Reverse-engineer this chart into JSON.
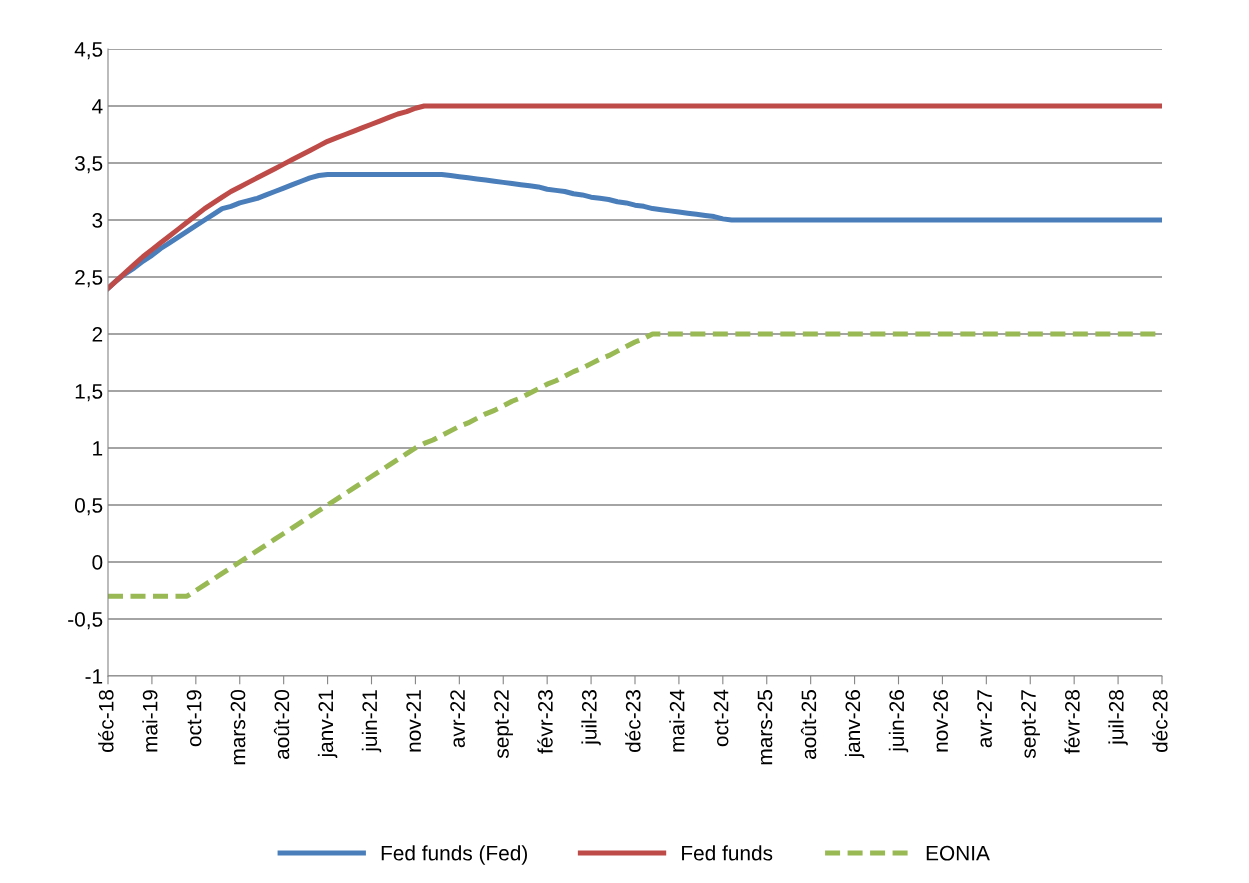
{
  "chart_data": {
    "type": "line",
    "categories": [
      "déc-18",
      null,
      null,
      null,
      null,
      "mai-19",
      null,
      null,
      null,
      null,
      "oct-19",
      null,
      null,
      null,
      null,
      "mars-20",
      null,
      null,
      null,
      null,
      "août-20",
      null,
      null,
      null,
      null,
      "janv-21",
      null,
      null,
      null,
      null,
      "juin-21",
      null,
      null,
      null,
      null,
      "nov-21",
      null,
      null,
      null,
      null,
      "avr-22",
      null,
      null,
      null,
      null,
      "sept-22",
      null,
      null,
      null,
      null,
      "févr-23",
      null,
      null,
      null,
      null,
      "juil-23",
      null,
      null,
      null,
      null,
      "déc-23",
      null,
      null,
      null,
      null,
      "mai-24",
      null,
      null,
      null,
      null,
      "oct-24",
      null,
      null,
      null,
      null,
      "mars-25",
      null,
      null,
      null,
      null,
      "août-25",
      null,
      null,
      null,
      null,
      "janv-26",
      null,
      null,
      null,
      null,
      "juin-26",
      null,
      null,
      null,
      null,
      "nov-26",
      null,
      null,
      null,
      null,
      "avr-27",
      null,
      null,
      null,
      null,
      "sept-27",
      null,
      null,
      null,
      null,
      "févr-28",
      null,
      null,
      null,
      null,
      "juil-28",
      null,
      null,
      null,
      null,
      "déc-28"
    ],
    "series": [
      {
        "name": "Fed funds (Fed)",
        "color": "#4a7ebb",
        "line_style": "solid",
        "values": [
          2.4,
          2.47,
          2.53,
          2.58,
          2.64,
          2.69,
          2.75,
          2.8,
          2.85,
          2.9,
          2.95,
          3.0,
          3.05,
          3.1,
          3.12,
          3.15,
          3.17,
          3.19,
          3.22,
          3.25,
          3.28,
          3.31,
          3.34,
          3.37,
          3.39,
          3.4,
          3.4,
          3.4,
          3.4,
          3.4,
          3.4,
          3.4,
          3.4,
          3.4,
          3.4,
          3.4,
          3.4,
          3.4,
          3.4,
          3.39,
          3.38,
          3.37,
          3.36,
          3.35,
          3.34,
          3.33,
          3.32,
          3.31,
          3.3,
          3.29,
          3.27,
          3.26,
          3.25,
          3.23,
          3.22,
          3.2,
          3.19,
          3.18,
          3.16,
          3.15,
          3.13,
          3.12,
          3.1,
          3.09,
          3.08,
          3.07,
          3.06,
          3.05,
          3.04,
          3.03,
          3.01,
          3,
          3,
          3,
          3,
          3,
          3,
          3,
          3,
          3,
          3,
          3,
          3,
          3,
          3,
          3,
          3,
          3,
          3,
          3,
          3,
          3,
          3,
          3,
          3,
          3,
          3,
          3,
          3,
          3,
          3,
          3,
          3,
          3,
          3,
          3,
          3,
          3,
          3,
          3,
          3,
          3,
          3,
          3,
          3,
          3,
          3,
          3,
          3,
          3,
          3
        ]
      },
      {
        "name": "Fed funds",
        "color": "#be4b48",
        "line_style": "solid",
        "values": [
          2.4,
          2.47,
          2.54,
          2.61,
          2.68,
          2.74,
          2.8,
          2.86,
          2.92,
          2.98,
          3.04,
          3.1,
          3.15,
          3.2,
          3.25,
          3.29,
          3.33,
          3.37,
          3.41,
          3.45,
          3.49,
          3.53,
          3.57,
          3.61,
          3.65,
          3.69,
          3.72,
          3.75,
          3.78,
          3.81,
          3.84,
          3.87,
          3.9,
          3.93,
          3.95,
          3.98,
          4,
          4,
          4,
          4,
          4,
          4,
          4,
          4,
          4,
          4,
          4,
          4,
          4,
          4,
          4,
          4,
          4,
          4,
          4,
          4,
          4,
          4,
          4,
          4,
          4,
          4,
          4,
          4,
          4,
          4,
          4,
          4,
          4,
          4,
          4,
          4,
          4,
          4,
          4,
          4,
          4,
          4,
          4,
          4,
          4,
          4,
          4,
          4,
          4,
          4,
          4,
          4,
          4,
          4,
          4,
          4,
          4,
          4,
          4,
          4,
          4,
          4,
          4,
          4,
          4,
          4,
          4,
          4,
          4,
          4,
          4,
          4,
          4,
          4,
          4,
          4,
          4,
          4,
          4,
          4,
          4,
          4,
          4,
          4,
          4
        ]
      },
      {
        "name": "EONIA",
        "color": "#98b954",
        "line_style": "dashed",
        "values": [
          -0.3,
          -0.3,
          -0.3,
          -0.3,
          -0.3,
          -0.3,
          -0.3,
          -0.3,
          -0.3,
          -0.3,
          -0.25,
          -0.2,
          -0.15,
          -0.1,
          -0.05,
          0,
          0.05,
          0.1,
          0.15,
          0.2,
          0.25,
          0.3,
          0.35,
          0.4,
          0.45,
          0.5,
          0.55,
          0.6,
          0.65,
          0.7,
          0.75,
          0.8,
          0.85,
          0.9,
          0.95,
          1.0,
          1.04,
          1.07,
          1.11,
          1.15,
          1.19,
          1.22,
          1.26,
          1.3,
          1.33,
          1.37,
          1.41,
          1.44,
          1.48,
          1.52,
          1.56,
          1.59,
          1.63,
          1.67,
          1.7,
          1.74,
          1.78,
          1.81,
          1.85,
          1.89,
          1.93,
          1.96,
          2.0,
          2,
          2,
          2,
          2,
          2,
          2,
          2,
          2,
          2,
          2,
          2,
          2,
          2,
          2,
          2,
          2,
          2,
          2,
          2,
          2,
          2,
          2,
          2,
          2,
          2,
          2,
          2,
          2,
          2,
          2,
          2,
          2,
          2,
          2,
          2,
          2,
          2,
          2,
          2,
          2,
          2,
          2,
          2,
          2,
          2,
          2,
          2,
          2,
          2,
          2,
          2,
          2,
          2,
          2,
          2,
          2,
          2,
          2
        ]
      }
    ],
    "ylim": [
      -1,
      4.5
    ],
    "yticks": [
      -1,
      {
        "value": -0.5,
        "label": "-0,5"
      },
      0,
      {
        "value": 0.5,
        "label": "0,5"
      },
      1,
      {
        "value": 1.5,
        "label": "1,5"
      },
      2,
      {
        "value": 2.5,
        "label": "2,5"
      },
      3,
      {
        "value": 3.5,
        "label": "3,5"
      },
      4,
      {
        "value": 4.5,
        "label": "4,5"
      }
    ],
    "grid": "y",
    "legend": "bottom",
    "marker": "none"
  }
}
